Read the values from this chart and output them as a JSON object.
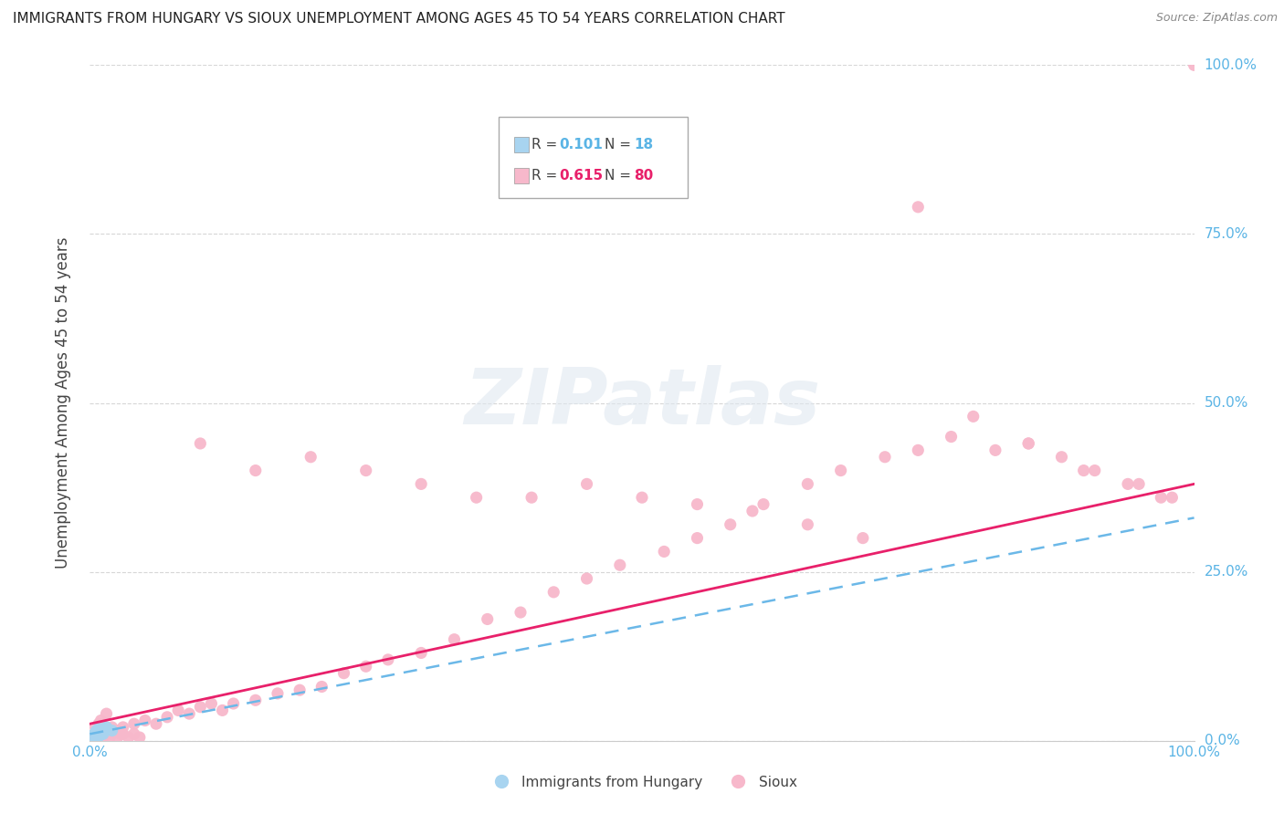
{
  "title": "IMMIGRANTS FROM HUNGARY VS SIOUX UNEMPLOYMENT AMONG AGES 45 TO 54 YEARS CORRELATION CHART",
  "source": "Source: ZipAtlas.com",
  "ylabel": "Unemployment Among Ages 45 to 54 years",
  "watermark": "ZIPatlas",
  "hungary_color": "#a8d4f0",
  "sioux_color": "#f7b8cb",
  "hungary_line_color": "#6bb8e8",
  "sioux_line_color": "#e8206a",
  "grid_color": "#cccccc",
  "background_color": "#ffffff",
  "xlim": [
    0.0,
    1.0
  ],
  "ylim": [
    0.0,
    1.0
  ],
  "ytick_vals": [
    0.0,
    0.25,
    0.5,
    0.75,
    1.0
  ],
  "ytick_labels": [
    "0.0%",
    "25.0%",
    "50.0%",
    "75.0%",
    "100.0%"
  ],
  "tick_color": "#5ab4e5",
  "sioux_x": [
    0.005,
    0.008,
    0.01,
    0.012,
    0.015,
    0.018,
    0.02,
    0.022,
    0.025,
    0.028,
    0.03,
    0.035,
    0.04,
    0.045,
    0.005,
    0.008,
    0.01,
    0.015,
    0.02,
    0.025,
    0.03,
    0.04,
    0.05,
    0.06,
    0.07,
    0.08,
    0.09,
    0.1,
    0.11,
    0.12,
    0.13,
    0.15,
    0.17,
    0.19,
    0.21,
    0.23,
    0.25,
    0.27,
    0.3,
    0.33,
    0.36,
    0.39,
    0.42,
    0.45,
    0.48,
    0.52,
    0.55,
    0.58,
    0.61,
    0.65,
    0.68,
    0.72,
    0.75,
    0.78,
    0.82,
    0.85,
    0.88,
    0.91,
    0.94,
    0.97,
    0.1,
    0.15,
    0.2,
    0.25,
    0.3,
    0.35,
    0.4,
    0.45,
    0.5,
    0.55,
    0.6,
    0.65,
    0.7,
    0.75,
    0.8,
    0.85,
    0.9,
    0.95,
    0.98,
    1.0
  ],
  "sioux_y": [
    0.005,
    0.01,
    0.015,
    0.005,
    0.01,
    0.005,
    0.01,
    0.015,
    0.005,
    0.01,
    0.01,
    0.005,
    0.01,
    0.005,
    0.02,
    0.025,
    0.03,
    0.04,
    0.02,
    0.015,
    0.02,
    0.025,
    0.03,
    0.025,
    0.035,
    0.045,
    0.04,
    0.05,
    0.055,
    0.045,
    0.055,
    0.06,
    0.07,
    0.075,
    0.08,
    0.1,
    0.11,
    0.12,
    0.13,
    0.15,
    0.18,
    0.19,
    0.22,
    0.24,
    0.26,
    0.28,
    0.3,
    0.32,
    0.35,
    0.38,
    0.4,
    0.42,
    0.43,
    0.45,
    0.43,
    0.44,
    0.42,
    0.4,
    0.38,
    0.36,
    0.44,
    0.4,
    0.42,
    0.4,
    0.38,
    0.36,
    0.36,
    0.38,
    0.36,
    0.35,
    0.34,
    0.32,
    0.3,
    0.79,
    0.48,
    0.44,
    0.4,
    0.38,
    0.36,
    1.0
  ],
  "hungary_x": [
    0.002,
    0.003,
    0.004,
    0.005,
    0.005,
    0.006,
    0.006,
    0.007,
    0.007,
    0.008,
    0.008,
    0.009,
    0.01,
    0.011,
    0.012,
    0.013,
    0.015,
    0.02
  ],
  "hungary_y": [
    0.005,
    0.008,
    0.01,
    0.005,
    0.012,
    0.008,
    0.015,
    0.01,
    0.005,
    0.012,
    0.018,
    0.008,
    0.015,
    0.012,
    0.01,
    0.018,
    0.02,
    0.015
  ],
  "sioux_line_x0": 0.0,
  "sioux_line_y0": 0.025,
  "sioux_line_x1": 1.0,
  "sioux_line_y1": 0.38,
  "hungary_line_x0": 0.0,
  "hungary_line_y0": 0.01,
  "hungary_line_x1": 1.0,
  "hungary_line_y1": 0.33
}
